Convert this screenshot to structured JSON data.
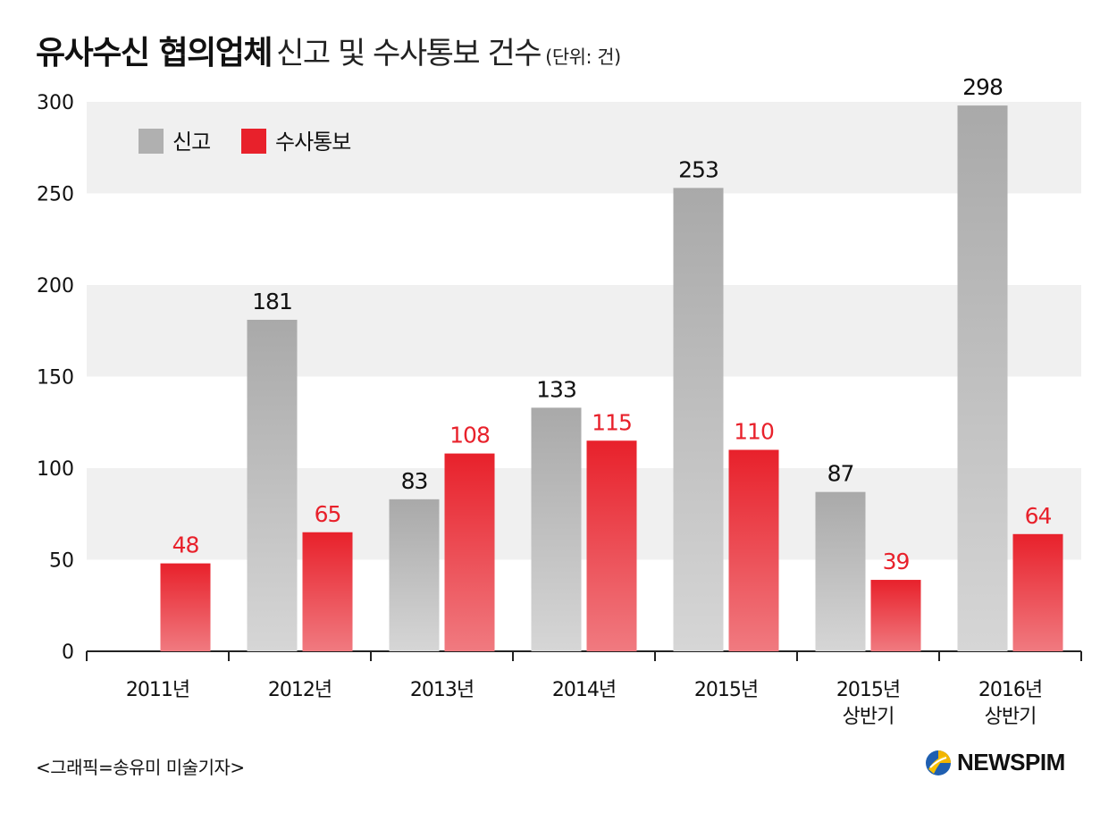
{
  "header": {
    "title_bold": "유사수신 협의업체",
    "title_light": "신고 및 수사통보 건수",
    "unit": "(단위: 건)"
  },
  "chart_data": {
    "type": "bar",
    "categories": [
      [
        "2011년"
      ],
      [
        "2012년"
      ],
      [
        "2013년"
      ],
      [
        "2014년"
      ],
      [
        "2015년"
      ],
      [
        "2015년",
        "상반기"
      ],
      [
        "2016년",
        "상반기"
      ]
    ],
    "series": [
      {
        "name": "신고",
        "color": "#b0b0b0",
        "label_color": "#111111",
        "values": [
          null,
          181,
          83,
          133,
          253,
          87,
          298
        ]
      },
      {
        "name": "수사통보",
        "color": "#e8212b",
        "label_color": "#e8212b",
        "values": [
          48,
          65,
          108,
          115,
          110,
          39,
          64
        ]
      }
    ],
    "yticks": [
      0,
      50,
      100,
      150,
      200,
      250,
      300
    ],
    "ylim": [
      0,
      300
    ],
    "grid": "alternating bands",
    "legend_position": "top-left"
  },
  "footer": {
    "credit": "<그래픽=송유미 미술기자>",
    "logo_text": "NEWSPIM",
    "logo_icon": "newspim-logo-icon"
  }
}
